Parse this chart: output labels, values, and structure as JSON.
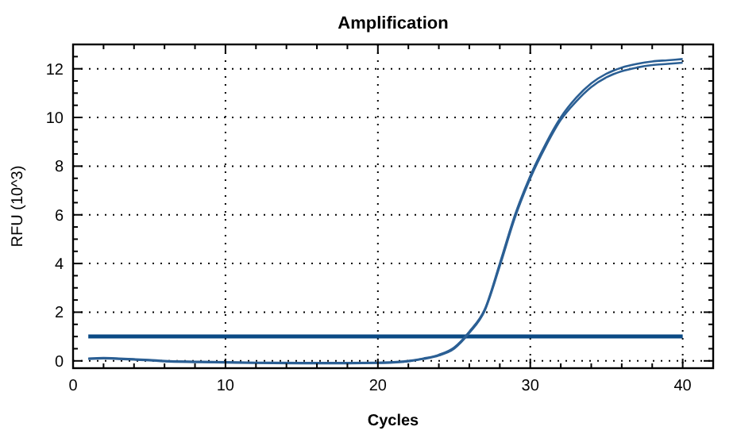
{
  "chart_data": {
    "type": "line",
    "title": "Amplification",
    "xlabel": "Cycles",
    "ylabel": "RFU (10^3)",
    "xlim": [
      0,
      42
    ],
    "ylim": [
      -0.3,
      13
    ],
    "xticks": [
      0,
      {
        "value": 2,
        "label": null
      },
      {
        "value": 4,
        "label": null
      },
      {
        "value": 6,
        "label": null
      },
      {
        "value": 8,
        "label": null
      },
      10,
      {
        "value": 12,
        "label": null
      },
      {
        "value": 14,
        "label": null
      },
      {
        "value": 16,
        "label": null
      },
      {
        "value": 18,
        "label": null
      },
      20,
      {
        "value": 22,
        "label": null
      },
      {
        "value": 24,
        "label": null
      },
      {
        "value": 26,
        "label": null
      },
      {
        "value": 28,
        "label": null
      },
      30,
      {
        "value": 32,
        "label": null
      },
      {
        "value": 34,
        "label": null
      },
      {
        "value": 36,
        "label": null
      },
      {
        "value": 38,
        "label": null
      },
      40
    ],
    "yticks": [
      0,
      {
        "value": 0.5,
        "label": null
      },
      {
        "value": 1,
        "label": null
      },
      {
        "value": 1.5,
        "label": null
      },
      2,
      {
        "value": 2.5,
        "label": null
      },
      {
        "value": 3,
        "label": null
      },
      {
        "value": 3.5,
        "label": null
      },
      4,
      {
        "value": 4.5,
        "label": null
      },
      {
        "value": 5,
        "label": null
      },
      {
        "value": 5.5,
        "label": null
      },
      6,
      {
        "value": 6.5,
        "label": null
      },
      {
        "value": 7,
        "label": null
      },
      {
        "value": 7.5,
        "label": null
      },
      8,
      {
        "value": 8.5,
        "label": null
      },
      {
        "value": 9,
        "label": null
      },
      {
        "value": 9.5,
        "label": null
      },
      10,
      {
        "value": 10.5,
        "label": null
      },
      {
        "value": 11,
        "label": null
      },
      {
        "value": 11.5,
        "label": null
      },
      12,
      {
        "value": 12.5,
        "label": null
      }
    ],
    "grid": true,
    "line_style": "solid",
    "marker": "none",
    "x": [
      1,
      2,
      3,
      4,
      5,
      6,
      8,
      10,
      12,
      15,
      18,
      20,
      21,
      22,
      23,
      24,
      25,
      26,
      27,
      28,
      29,
      30,
      31,
      32,
      33,
      34,
      35,
      36,
      37,
      38,
      39,
      40
    ],
    "series": [
      {
        "color": "#2b5f94",
        "values": [
          0.1,
          0.12,
          0.1,
          0.07,
          0.04,
          0.0,
          -0.03,
          -0.05,
          -0.07,
          -0.08,
          -0.08,
          -0.07,
          -0.05,
          0.0,
          0.1,
          0.25,
          0.55,
          1.2,
          2.1,
          4.0,
          6.0,
          7.6,
          8.9,
          10.0,
          10.8,
          11.4,
          11.8,
          12.05,
          12.2,
          12.3,
          12.35,
          12.4
        ]
      },
      {
        "color": "#2b5f94",
        "values": [
          0.08,
          0.1,
          0.08,
          0.05,
          0.02,
          -0.02,
          -0.05,
          -0.07,
          -0.09,
          -0.1,
          -0.1,
          -0.09,
          -0.07,
          -0.02,
          0.08,
          0.22,
          0.5,
          1.15,
          2.05,
          3.9,
          5.9,
          7.5,
          8.8,
          9.9,
          10.65,
          11.25,
          11.65,
          11.9,
          12.05,
          12.15,
          12.2,
          12.25
        ]
      }
    ],
    "ref_lines": [
      {
        "axis": "y",
        "value": 1,
        "color": "#0b4a85"
      }
    ]
  }
}
